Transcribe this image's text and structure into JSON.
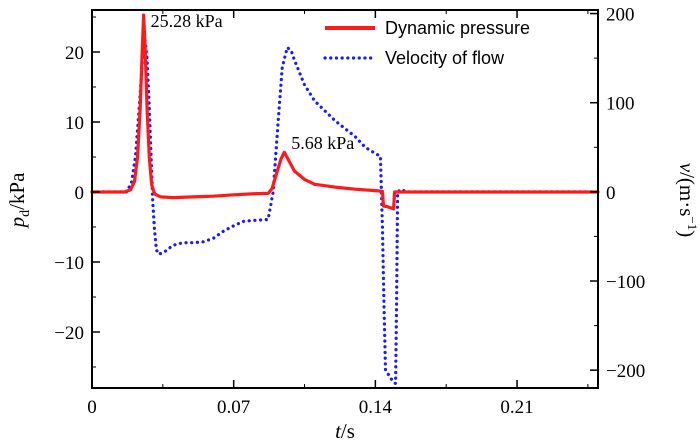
{
  "chart_data": {
    "type": "line",
    "x_axis": {
      "label_var": "t",
      "label_unit": "/s",
      "range": [
        0,
        0.25
      ],
      "ticks": [
        0,
        0.07,
        0.14,
        0.21
      ],
      "tick_labels": [
        "0",
        "0.07",
        "0.14",
        "0.21"
      ]
    },
    "y_left": {
      "label_var": "p",
      "label_sub": "d",
      "label_unit": "/kPa",
      "range": [
        -28,
        26
      ],
      "ticks": [
        -20,
        -10,
        0,
        10,
        20
      ],
      "tick_labels": [
        "−20",
        "−10",
        "0",
        "10",
        "20"
      ]
    },
    "y_right": {
      "label_var": "v",
      "label_unit": "/(m·s",
      "label_sup": "−1",
      "label_close": ")",
      "range": [
        -220,
        204
      ],
      "ticks": [
        -200,
        -100,
        0,
        100,
        200
      ],
      "tick_labels": [
        "−200",
        "−100",
        "0",
        "100",
        "200"
      ]
    },
    "legend_position": "top-right",
    "series": [
      {
        "name": "Dynamic pressure",
        "axis": "left",
        "color": "#ff1a1a",
        "style": "solid",
        "points": [
          [
            0,
            0
          ],
          [
            0.016,
            0
          ],
          [
            0.019,
            0.3
          ],
          [
            0.021,
            1.5
          ],
          [
            0.0225,
            5
          ],
          [
            0.0238,
            12
          ],
          [
            0.0248,
            20
          ],
          [
            0.0255,
            25.28
          ],
          [
            0.0262,
            21
          ],
          [
            0.0272,
            12
          ],
          [
            0.0283,
            5
          ],
          [
            0.0295,
            1
          ],
          [
            0.031,
            -0.3
          ],
          [
            0.034,
            -0.7
          ],
          [
            0.04,
            -0.8
          ],
          [
            0.05,
            -0.7
          ],
          [
            0.06,
            -0.6
          ],
          [
            0.07,
            -0.4
          ],
          [
            0.08,
            -0.25
          ],
          [
            0.087,
            -0.2
          ],
          [
            0.089,
            0.5
          ],
          [
            0.091,
            2.5
          ],
          [
            0.0935,
            4.8
          ],
          [
            0.095,
            5.68
          ],
          [
            0.097,
            4.6
          ],
          [
            0.1,
            3
          ],
          [
            0.105,
            1.8
          ],
          [
            0.11,
            1.1
          ],
          [
            0.12,
            0.7
          ],
          [
            0.13,
            0.4
          ],
          [
            0.14,
            0.2
          ],
          [
            0.1435,
            0.1
          ],
          [
            0.144,
            -2
          ],
          [
            0.146,
            -2.1
          ],
          [
            0.148,
            -2.3
          ],
          [
            0.149,
            -2.4
          ],
          [
            0.1495,
            0
          ],
          [
            0.153,
            0
          ],
          [
            0.25,
            0
          ]
        ]
      },
      {
        "name": "Velocity of flow",
        "axis": "right",
        "color": "#1a1aff",
        "style": "dotted",
        "points": [
          [
            0,
            0
          ],
          [
            0.017,
            0
          ],
          [
            0.0195,
            10
          ],
          [
            0.0215,
            40
          ],
          [
            0.0235,
            100
          ],
          [
            0.025,
            150
          ],
          [
            0.0262,
            170
          ],
          [
            0.0272,
            150
          ],
          [
            0.0282,
            100
          ],
          [
            0.0292,
            40
          ],
          [
            0.03,
            -10
          ],
          [
            0.0308,
            -40
          ],
          [
            0.0318,
            -65
          ],
          [
            0.033,
            -70
          ],
          [
            0.036,
            -67
          ],
          [
            0.04,
            -60
          ],
          [
            0.045,
            -57
          ],
          [
            0.05,
            -57
          ],
          [
            0.055,
            -56
          ],
          [
            0.06,
            -52
          ],
          [
            0.065,
            -44
          ],
          [
            0.07,
            -38
          ],
          [
            0.075,
            -33
          ],
          [
            0.08,
            -32
          ],
          [
            0.087,
            -31
          ],
          [
            0.0895,
            0
          ],
          [
            0.092,
            80
          ],
          [
            0.094,
            140
          ],
          [
            0.0965,
            162
          ],
          [
            0.0985,
            158
          ],
          [
            0.1,
            148
          ],
          [
            0.105,
            120
          ],
          [
            0.11,
            102
          ],
          [
            0.12,
            80
          ],
          [
            0.13,
            62
          ],
          [
            0.135,
            50
          ],
          [
            0.14,
            43
          ],
          [
            0.1425,
            40
          ],
          [
            0.1435,
            -40
          ],
          [
            0.1442,
            -120
          ],
          [
            0.145,
            -200
          ],
          [
            0.1465,
            -205
          ],
          [
            0.1485,
            -212
          ],
          [
            0.15,
            -215
          ],
          [
            0.1505,
            -120
          ],
          [
            0.151,
            0
          ],
          [
            0.153,
            3
          ],
          [
            0.155,
            0
          ],
          [
            0.25,
            0
          ]
        ]
      }
    ],
    "annotations": [
      {
        "text": "25.28 kPa",
        "axis": "left",
        "x": 0.0255,
        "y": 25.28
      },
      {
        "text": "5.68 kPa",
        "axis": "left",
        "x": 0.095,
        "y": 5.68
      }
    ]
  }
}
